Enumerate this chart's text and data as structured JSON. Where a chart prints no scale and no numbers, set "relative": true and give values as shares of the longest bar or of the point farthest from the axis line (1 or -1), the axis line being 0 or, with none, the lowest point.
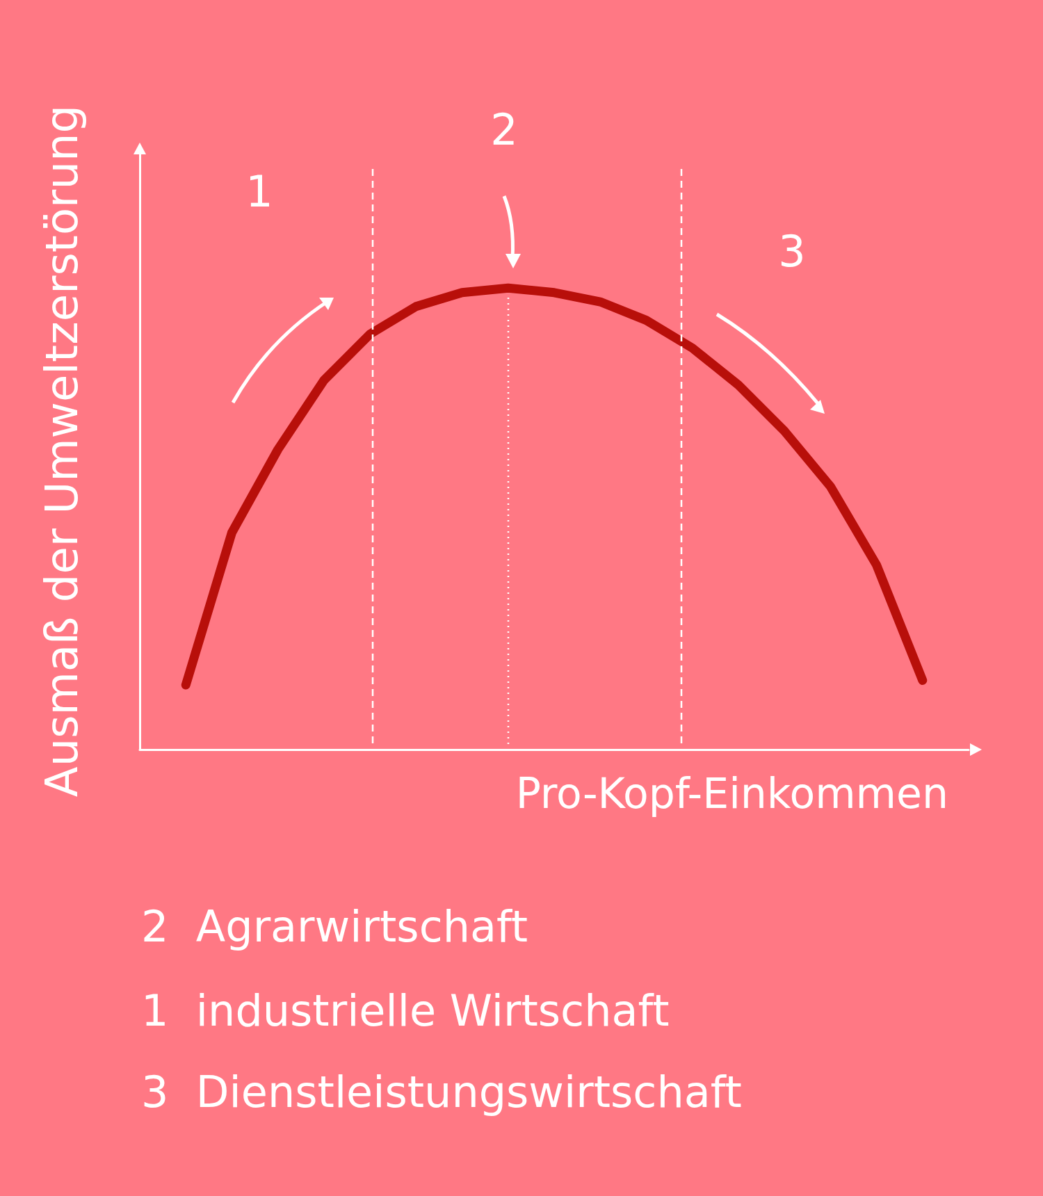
{
  "chart_data": {
    "type": "line",
    "relative": true,
    "xlabel": "Pro-Kopf-Einkommen",
    "ylabel": "Ausmaß der Umweltzerstörung",
    "categories": [
      null,
      null,
      null,
      null,
      null,
      null,
      null,
      null,
      null,
      null,
      null,
      null,
      null,
      null,
      null,
      null,
      null
    ],
    "series": [
      {
        "color": "#b80f0a",
        "values": [
          0.14,
          0.47,
          0.65,
          0.8,
          0.9,
          0.96,
          0.99,
          1.0,
          0.99,
          0.97,
          0.93,
          0.87,
          0.79,
          0.69,
          0.57,
          0.4,
          0.15
        ]
      }
    ],
    "line_style": "solid",
    "annotations": [
      "1",
      "2",
      "3",
      "2  Agrarwirtschaft",
      "1  industrielle Wirtschaft",
      "3  Dienstleistungswirtschaft"
    ]
  }
}
